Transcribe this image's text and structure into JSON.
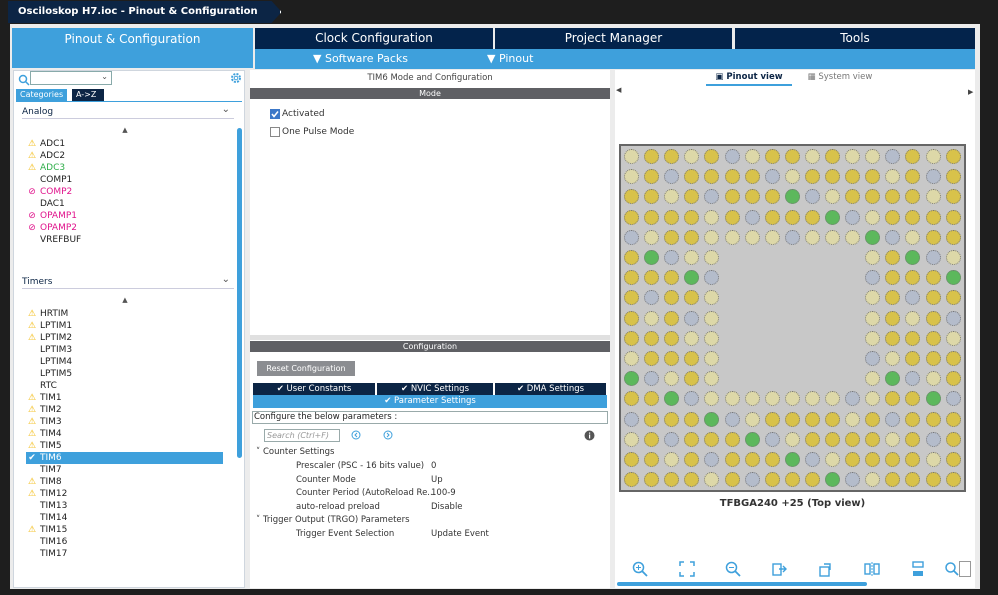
{
  "window": {
    "title": "Osciloskop H7.ioc - Pinout & Configuration"
  },
  "main_tabs": [
    "Pinout & Configuration",
    "Clock Configuration",
    "Project Manager",
    "Tools"
  ],
  "sub_menu": {
    "software_packs": "Software Packs",
    "pinout": "Pinout"
  },
  "left": {
    "category_tabs": [
      "Categories",
      "A->Z"
    ],
    "groups": [
      {
        "label": "Analog",
        "items": [
          {
            "label": "ADC1",
            "status": "warning"
          },
          {
            "label": "ADC2",
            "status": "warning"
          },
          {
            "label": "ADC3",
            "status": "warning-green"
          },
          {
            "label": "COMP1",
            "status": "none"
          },
          {
            "label": "COMP2",
            "status": "disabled"
          },
          {
            "label": "DAC1",
            "status": "none"
          },
          {
            "label": "OPAMP1",
            "status": "disabled"
          },
          {
            "label": "OPAMP2",
            "status": "disabled"
          },
          {
            "label": "VREFBUF",
            "status": "none"
          }
        ]
      },
      {
        "label": "Timers",
        "items": [
          {
            "label": "HRTIM",
            "status": "warning"
          },
          {
            "label": "LPTIM1",
            "status": "warning"
          },
          {
            "label": "LPTIM2",
            "status": "warning"
          },
          {
            "label": "LPTIM3",
            "status": "none"
          },
          {
            "label": "LPTIM4",
            "status": "none"
          },
          {
            "label": "LPTIM5",
            "status": "none"
          },
          {
            "label": "RTC",
            "status": "none"
          },
          {
            "label": "TIM1",
            "status": "warning"
          },
          {
            "label": "TIM2",
            "status": "warning"
          },
          {
            "label": "TIM3",
            "status": "warning"
          },
          {
            "label": "TIM4",
            "status": "warning"
          },
          {
            "label": "TIM5",
            "status": "warning"
          },
          {
            "label": "TIM6",
            "status": "selected"
          },
          {
            "label": "TIM7",
            "status": "none"
          },
          {
            "label": "TIM8",
            "status": "warning"
          },
          {
            "label": "TIM12",
            "status": "warning"
          },
          {
            "label": "TIM13",
            "status": "none"
          },
          {
            "label": "TIM14",
            "status": "none"
          },
          {
            "label": "TIM15",
            "status": "warning"
          },
          {
            "label": "TIM16",
            "status": "none"
          },
          {
            "label": "TIM17",
            "status": "none"
          }
        ]
      }
    ]
  },
  "middle": {
    "header": "TIM6 Mode and Configuration",
    "mode_label": "Mode",
    "activated_label": "Activated",
    "activated_checked": true,
    "one_pulse_label": "One Pulse Mode",
    "one_pulse_checked": false,
    "config_label": "Configuration",
    "reset_button": "Reset Configuration",
    "config_tabs": [
      "User Constants",
      "NVIC Settings",
      "DMA Settings"
    ],
    "param_tab": "Parameter Settings",
    "hint": "Configure the below parameters :",
    "search_placeholder": "Search (Ctrl+F)",
    "sections": [
      {
        "title": "Counter Settings",
        "params": [
          {
            "name": "Prescaler (PSC - 16 bits value)",
            "value": "0"
          },
          {
            "name": "Counter Mode",
            "value": "Up"
          },
          {
            "name": "Counter Period (AutoReload Re...",
            "value": "100-9"
          },
          {
            "name": "auto-reload preload",
            "value": "Disable"
          }
        ]
      },
      {
        "title": "Trigger Output (TRGO) Parameters",
        "params": [
          {
            "name": "Trigger Event Selection",
            "value": "Update Event"
          }
        ]
      }
    ]
  },
  "right": {
    "views": [
      "Pinout view",
      "System view"
    ],
    "chip_label": "TFBGA240 +25 (Top view)"
  },
  "colors": {
    "accent": "#3ea0dc",
    "navy": "#0c2545",
    "pin_yellow": "#d8c24a",
    "pin_green": "#5cb85c",
    "pin_gray": "#b4bccb",
    "pin_khaki": "#ddd8a8"
  }
}
